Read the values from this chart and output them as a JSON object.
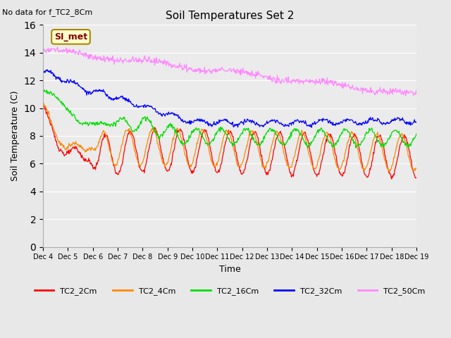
{
  "title": "Soil Temperatures Set 2",
  "top_left_text": "No data for f_TC2_8Cm",
  "xlabel": "Time",
  "ylabel": "Soil Temperature (C)",
  "ylim": [
    0,
    16
  ],
  "yticks": [
    0,
    2,
    4,
    6,
    8,
    10,
    12,
    14,
    16
  ],
  "x_tick_labels": [
    "Dec 4",
    "Dec 5",
    "Dec 6",
    "Dec 7",
    "Dec 8",
    "Dec 9",
    "Dec 10",
    "Dec 11",
    "Dec 12",
    "Dec 13",
    "Dec 14",
    "Dec 15",
    "Dec 16",
    "Dec 17",
    "Dec 18",
    "Dec 19"
  ],
  "legend_entries": [
    "TC2_2Cm",
    "TC2_4Cm",
    "TC2_16Cm",
    "TC2_32Cm",
    "TC2_50Cm"
  ],
  "line_colors": [
    "#ff0000",
    "#ff8800",
    "#00dd00",
    "#0000ff",
    "#ff88ff"
  ],
  "fig_bg_color": "#e8e8e8",
  "plot_bg_color": "#ebebeb",
  "annotation_box_color": "#ffffcc",
  "annotation_text": "SI_met",
  "annotation_text_color": "#880000",
  "annotation_border_color": "#aa8800"
}
